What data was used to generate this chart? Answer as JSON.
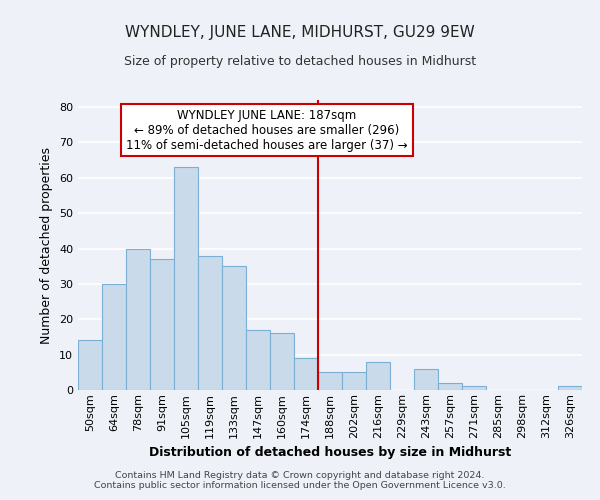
{
  "title": "WYNDLEY, JUNE LANE, MIDHURST, GU29 9EW",
  "subtitle": "Size of property relative to detached houses in Midhurst",
  "xlabel": "Distribution of detached houses by size in Midhurst",
  "ylabel": "Number of detached properties",
  "bar_labels": [
    "50sqm",
    "64sqm",
    "78sqm",
    "91sqm",
    "105sqm",
    "119sqm",
    "133sqm",
    "147sqm",
    "160sqm",
    "174sqm",
    "188sqm",
    "202sqm",
    "216sqm",
    "229sqm",
    "243sqm",
    "257sqm",
    "271sqm",
    "285sqm",
    "298sqm",
    "312sqm",
    "326sqm"
  ],
  "bar_heights": [
    14,
    30,
    40,
    37,
    63,
    38,
    35,
    17,
    16,
    9,
    5,
    5,
    8,
    0,
    6,
    2,
    1,
    0,
    0,
    0,
    1
  ],
  "bar_color": "#c9daea",
  "bar_edge_color": "#7bafd4",
  "vline_x_index": 10.0,
  "vline_color": "#cc0000",
  "ylim": [
    0,
    82
  ],
  "yticks": [
    0,
    10,
    20,
    30,
    40,
    50,
    60,
    70,
    80
  ],
  "annotation_title": "WYNDLEY JUNE LANE: 187sqm",
  "annotation_line1": "← 89% of detached houses are smaller (296)",
  "annotation_line2": "11% of semi-detached houses are larger (37) →",
  "annotation_box_color": "#ffffff",
  "annotation_border_color": "#cc0000",
  "footer1": "Contains HM Land Registry data © Crown copyright and database right 2024.",
  "footer2": "Contains public sector information licensed under the Open Government Licence v3.0.",
  "background_color": "#eef2f8",
  "grid_color": "#ffffff",
  "title_fontsize": 11,
  "subtitle_fontsize": 9,
  "xlabel_fontsize": 9,
  "ylabel_fontsize": 9,
  "tick_fontsize": 8
}
